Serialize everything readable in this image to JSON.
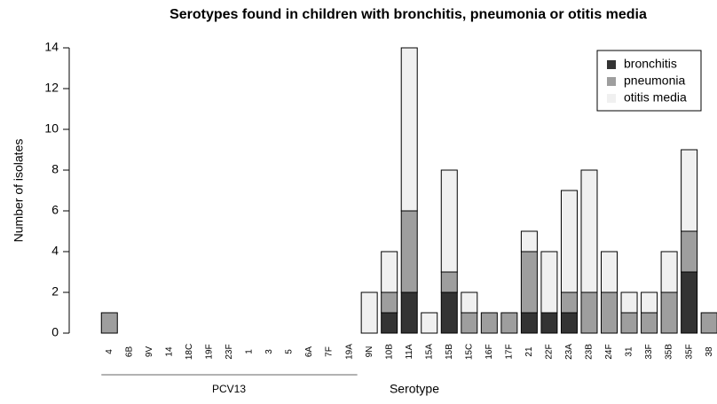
{
  "chart_data": {
    "type": "stacked-bar",
    "title": "Serotypes found in children with bronchitis, pneumonia or otitis media",
    "y_label": "Number of isolates",
    "x_label": "Serotype",
    "annotation": "PCV13",
    "categories": [
      "4",
      "6B",
      "9V",
      "14",
      "18C",
      "19F",
      "23F",
      "1",
      "3",
      "5",
      "6A",
      "7F",
      "19A",
      "9N",
      "10B",
      "11A",
      "15A",
      "15B",
      "15C",
      "16F",
      "17F",
      "21",
      "22F",
      "23A",
      "23B",
      "24F",
      "31",
      "33F",
      "35B",
      "35F",
      "38"
    ],
    "series": [
      {
        "name": "bronchitis",
        "color": "#333333",
        "values": [
          0,
          0,
          0,
          0,
          0,
          0,
          0,
          0,
          0,
          0,
          0,
          0,
          0,
          0,
          1,
          2,
          0,
          2,
          0,
          0,
          0,
          1,
          1,
          1,
          0,
          0,
          0,
          0,
          0,
          3,
          0
        ]
      },
      {
        "name": "pneumonia",
        "color": "#9e9e9e",
        "values": [
          1,
          0,
          0,
          0,
          0,
          0,
          0,
          0,
          0,
          0,
          0,
          0,
          0,
          0,
          1,
          4,
          0,
          1,
          1,
          1,
          1,
          3,
          0,
          1,
          2,
          2,
          1,
          1,
          2,
          2,
          1
        ]
      },
      {
        "name": "otitis media",
        "color": "#f0f0f0",
        "values": [
          0,
          0,
          0,
          0,
          0,
          0,
          0,
          0,
          0,
          0,
          0,
          0,
          0,
          2,
          2,
          8,
          1,
          5,
          1,
          0,
          0,
          1,
          3,
          5,
          6,
          2,
          1,
          1,
          2,
          4,
          0
        ]
      }
    ],
    "ylim": [
      0,
      14
    ],
    "yticks": [
      0,
      2,
      4,
      6,
      8,
      10,
      12,
      14
    ],
    "grid": false,
    "legend": "top-right"
  }
}
